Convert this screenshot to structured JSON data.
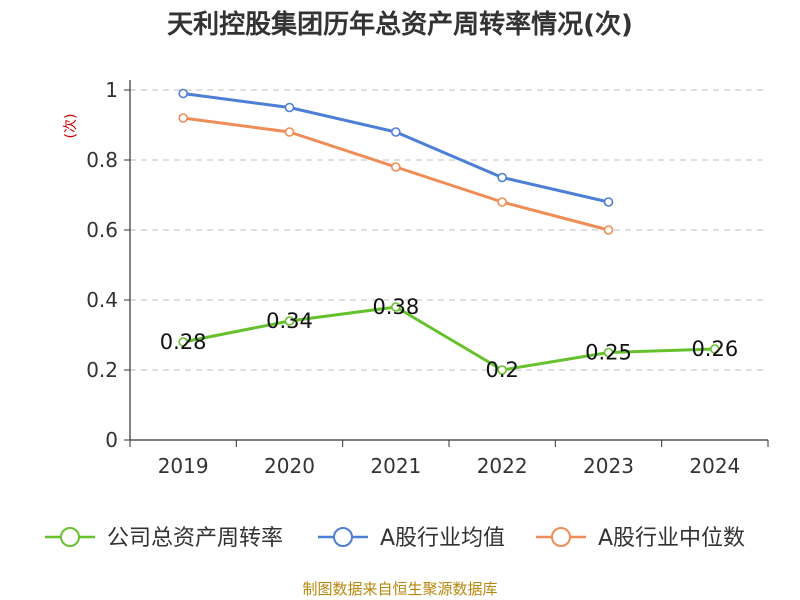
{
  "chart_data": {
    "type": "line",
    "title": "天利控股集团历年总资产周转率情况(次)",
    "ylabel": "(次)",
    "xlabel": "",
    "categories": [
      "2019",
      "2020",
      "2021",
      "2022",
      "2023",
      "2024"
    ],
    "ylim": [
      0,
      1
    ],
    "yticks": [
      "0",
      "0.2",
      "0.4",
      "0.6",
      "0.8",
      "1"
    ],
    "grid": true,
    "legend_position": "bottom",
    "series": [
      {
        "name": "公司总资产周转率",
        "color": "#66c22c",
        "values": [
          0.28,
          0.34,
          0.38,
          0.2,
          0.25,
          0.26
        ],
        "labels": [
          "0.28",
          "0.34",
          "0.38",
          "0.2",
          "0.25",
          "0.26"
        ]
      },
      {
        "name": "A股行业均值",
        "color": "#4d7fd6",
        "values": [
          0.99,
          0.95,
          0.88,
          0.75,
          0.68,
          null
        ]
      },
      {
        "name": "A股行业中位数",
        "color": "#f08c55",
        "values": [
          0.92,
          0.88,
          0.78,
          0.68,
          0.6,
          null
        ]
      }
    ],
    "source": "制图数据来自恒生聚源数据库"
  }
}
